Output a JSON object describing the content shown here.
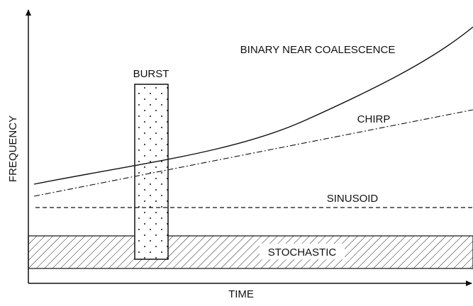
{
  "axes": {
    "y_label": "FREQUENCY",
    "x_label": "TIME"
  },
  "signals": {
    "binary": "BINARY NEAR COALESCENCE",
    "burst": "BURST",
    "chirp": "CHIRP",
    "sinusoid": "SINUSOID",
    "stochastic": "STOCHASTIC"
  }
}
